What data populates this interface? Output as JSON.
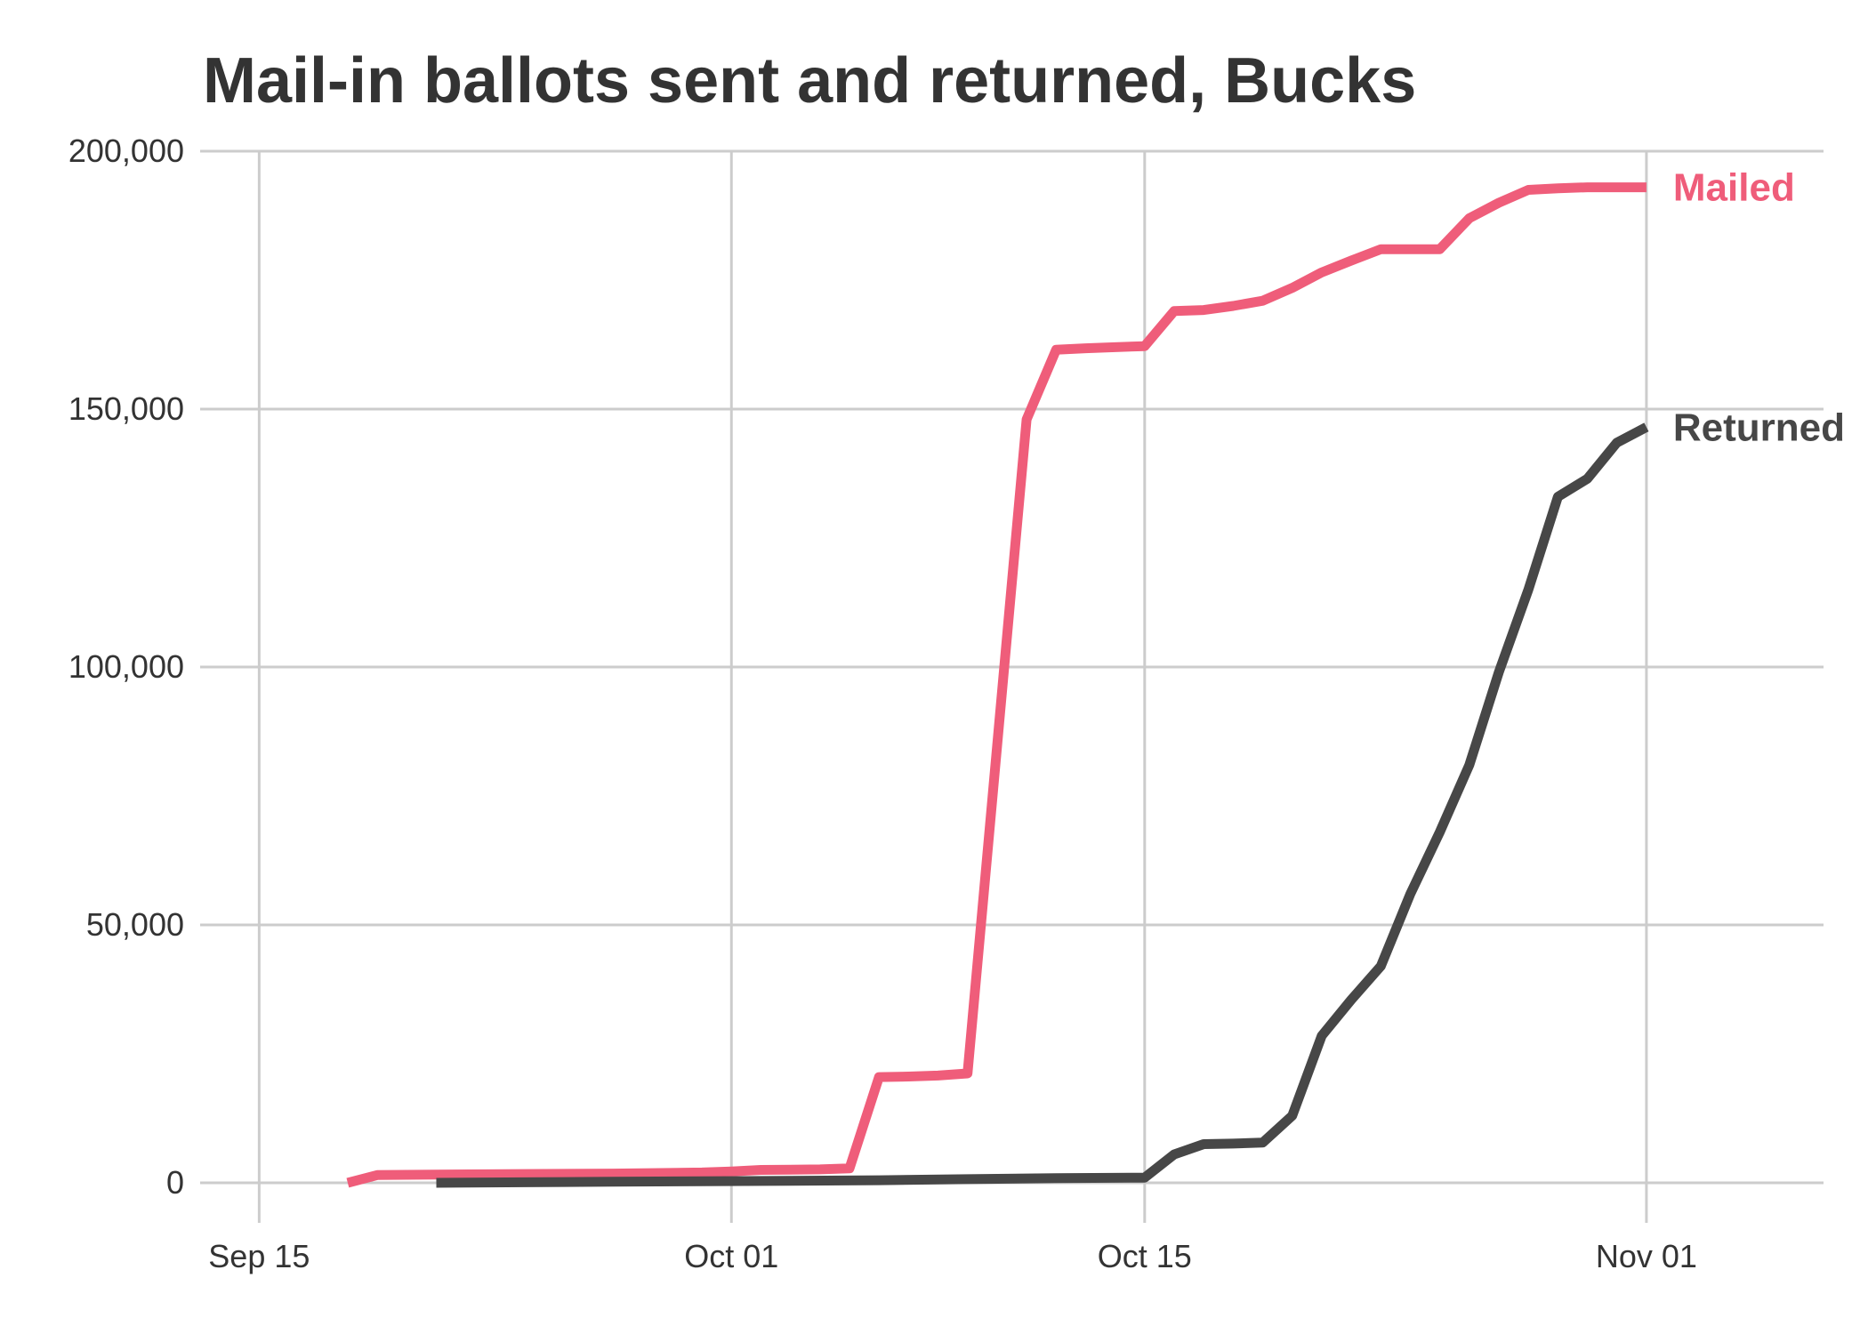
{
  "chart_data": {
    "type": "line",
    "title": "Mail-in ballots sent and returned, Bucks",
    "xlabel": "",
    "ylabel": "",
    "grid": true,
    "legend": "direct labels at right end of lines",
    "xlim": [
      "2020-09-13",
      "2020-11-07"
    ],
    "ylim": [
      0,
      200000
    ],
    "x_ticks": [
      {
        "date": "2020-09-15",
        "label": "Sep 15"
      },
      {
        "date": "2020-10-01",
        "label": "Oct 01"
      },
      {
        "date": "2020-10-15",
        "label": "Oct 15"
      },
      {
        "date": "2020-11-01",
        "label": "Nov 01"
      }
    ],
    "y_ticks": [
      {
        "value": 0,
        "label": "0"
      },
      {
        "value": 50000,
        "label": "50,000"
      },
      {
        "value": 100000,
        "label": "100,000"
      },
      {
        "value": 150000,
        "label": "150,000"
      },
      {
        "value": 200000,
        "label": "200,000"
      }
    ],
    "series": [
      {
        "name": "Mailed",
        "color": "#ef5d7a",
        "points": [
          [
            "2020-09-18",
            0
          ],
          [
            "2020-09-19",
            1500
          ],
          [
            "2020-09-21",
            1600
          ],
          [
            "2020-09-24",
            1700
          ],
          [
            "2020-09-27",
            1800
          ],
          [
            "2020-09-30",
            2000
          ],
          [
            "2020-10-01",
            2200
          ],
          [
            "2020-10-02",
            2500
          ],
          [
            "2020-10-04",
            2600
          ],
          [
            "2020-10-05",
            2800
          ],
          [
            "2020-10-06",
            20500
          ],
          [
            "2020-10-07",
            20600
          ],
          [
            "2020-10-08",
            20800
          ],
          [
            "2020-10-09",
            21200
          ],
          [
            "2020-10-11",
            148000
          ],
          [
            "2020-10-12",
            161500
          ],
          [
            "2020-10-13",
            161800
          ],
          [
            "2020-10-14",
            162000
          ],
          [
            "2020-10-15",
            162200
          ],
          [
            "2020-10-16",
            169000
          ],
          [
            "2020-10-17",
            169200
          ],
          [
            "2020-10-18",
            170000
          ],
          [
            "2020-10-19",
            171000
          ],
          [
            "2020-10-20",
            173500
          ],
          [
            "2020-10-21",
            176500
          ],
          [
            "2020-10-22",
            178800
          ],
          [
            "2020-10-23",
            181000
          ],
          [
            "2020-10-24",
            181000
          ],
          [
            "2020-10-25",
            181000
          ],
          [
            "2020-10-26",
            187000
          ],
          [
            "2020-10-27",
            190000
          ],
          [
            "2020-10-28",
            192500
          ],
          [
            "2020-10-29",
            192800
          ],
          [
            "2020-10-30",
            193000
          ],
          [
            "2020-10-31",
            193000
          ],
          [
            "2020-11-01",
            193000
          ]
        ]
      },
      {
        "name": "Returned",
        "color": "#474747",
        "points": [
          [
            "2020-09-21",
            0
          ],
          [
            "2020-09-24",
            100
          ],
          [
            "2020-09-27",
            200
          ],
          [
            "2020-09-30",
            300
          ],
          [
            "2020-10-03",
            400
          ],
          [
            "2020-10-06",
            500
          ],
          [
            "2020-10-09",
            700
          ],
          [
            "2020-10-12",
            900
          ],
          [
            "2020-10-15",
            1000
          ],
          [
            "2020-10-16",
            5500
          ],
          [
            "2020-10-17",
            7500
          ],
          [
            "2020-10-18",
            7600
          ],
          [
            "2020-10-19",
            7800
          ],
          [
            "2020-10-20",
            13000
          ],
          [
            "2020-10-21",
            28500
          ],
          [
            "2020-10-22",
            35500
          ],
          [
            "2020-10-23",
            42000
          ],
          [
            "2020-10-24",
            56000
          ],
          [
            "2020-10-25",
            68000
          ],
          [
            "2020-10-26",
            81000
          ],
          [
            "2020-10-27",
            99000
          ],
          [
            "2020-10-28",
            115000
          ],
          [
            "2020-10-29",
            133000
          ],
          [
            "2020-10-30",
            136500
          ],
          [
            "2020-10-31",
            143500
          ],
          [
            "2020-11-01",
            146500
          ]
        ]
      }
    ]
  }
}
